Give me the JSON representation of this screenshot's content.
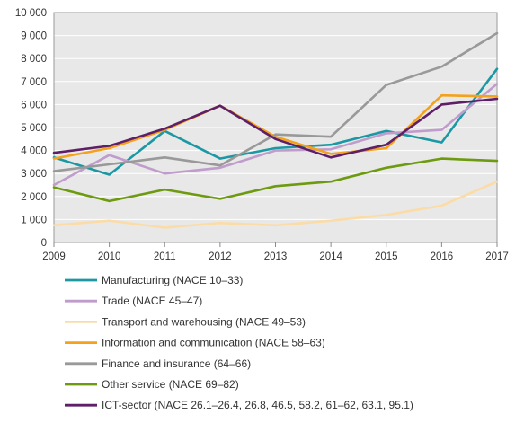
{
  "chart_data": {
    "type": "line",
    "title": "",
    "xlabel": "",
    "ylabel": "",
    "x": [
      2009,
      2010,
      2011,
      2012,
      2013,
      2014,
      2015,
      2016,
      2017
    ],
    "x_tick_labels": [
      "2009",
      "2010",
      "2011",
      "2012",
      "2013",
      "2014",
      "2015",
      "2016",
      "2017"
    ],
    "ylim": [
      0,
      10000
    ],
    "y_ticks": [
      0,
      1000,
      2000,
      3000,
      4000,
      5000,
      6000,
      7000,
      8000,
      9000,
      10000
    ],
    "y_tick_labels": [
      "0",
      "1 000",
      "2 000",
      "3 000",
      "4 000",
      "5 000",
      "6 000",
      "7 000",
      "8 000",
      "9 000",
      "10 000"
    ],
    "grid": "horizontal",
    "plot_background": "#e8e8e8",
    "legend_position": "bottom",
    "series": [
      {
        "name": "Manufacturing (NACE 10–33)",
        "color": "#1b98a4",
        "values": [
          3700,
          2950,
          4850,
          3650,
          4100,
          4250,
          4850,
          4350,
          7550
        ]
      },
      {
        "name": "Trade (NACE 45–47)",
        "color": "#c09ccc",
        "values": [
          2500,
          3800,
          3000,
          3250,
          4000,
          4050,
          4750,
          4900,
          6900
        ]
      },
      {
        "name": "Transport and warehousing (NACE 49–53)",
        "color": "#fbdca6",
        "values": [
          750,
          950,
          650,
          850,
          750,
          950,
          1200,
          1600,
          2650
        ]
      },
      {
        "name": "Information and communication (NACE 58–63)",
        "color": "#f4a11b",
        "values": [
          3650,
          4100,
          4900,
          5950,
          4600,
          3850,
          4100,
          6400,
          6350
        ]
      },
      {
        "name": "Finance and insurance (64–66)",
        "color": "#999999",
        "values": [
          3100,
          3400,
          3700,
          3350,
          4700,
          4600,
          6850,
          7650,
          9100
        ]
      },
      {
        "name": "Other service (NACE 69–82)",
        "color": "#6d9a0f",
        "values": [
          2400,
          1800,
          2300,
          1900,
          2450,
          2650,
          3250,
          3650,
          3550
        ]
      },
      {
        "name": "ICT-sector (NACE 26.1–26.4, 26.8, 46.5, 58.2, 61–62, 63.1, 95.1)",
        "color": "#5e1f66",
        "values": [
          3900,
          4200,
          4950,
          5950,
          4500,
          3700,
          4250,
          6000,
          6250
        ]
      }
    ]
  }
}
